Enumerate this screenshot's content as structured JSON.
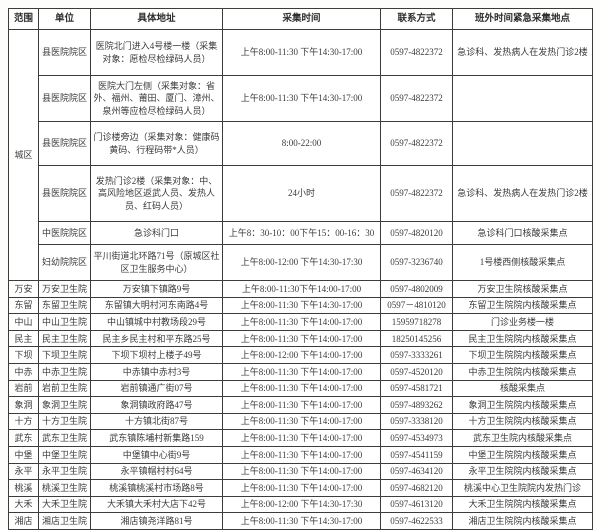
{
  "header": {
    "cols": [
      "范围",
      "单位",
      "具体地址",
      "采集时间",
      "联系方式",
      "班外时间紧急采集地点"
    ]
  },
  "city_section": {
    "scope": "城区",
    "rows": [
      {
        "unit": "县医院院区",
        "address": "医院北门进入4号楼一楼（采集对象：愿检尽检绿码人员）",
        "time": "上午8:00-11:30 下午14:30-17:00",
        "phone": "0597-4822372",
        "emergency": "急诊科、发热病人在发热门诊2楼"
      },
      {
        "unit": "县医院院区",
        "address": "医院大门左侧（采集对象：省外、福州、莆田、厦门、漳州、泉州等应检尽检绿码人员）",
        "time": "上午8:00-11:30 下午14:30-17:00",
        "phone": "0597-4822372",
        "emergency": ""
      },
      {
        "unit": "县医院院区",
        "address": "门诊楼旁边（采集对象：健康码黄码、行程码带*人员）",
        "time": "8:00-22:00",
        "phone": "0597-4822372",
        "emergency": ""
      },
      {
        "unit": "县医院院区",
        "address": "发热门诊2楼（采集对象：中、高风险地区返武人员、发热人员、红码人员）",
        "time": "24小时",
        "phone": "0597-4822372",
        "emergency": "急诊科、发热病人在发热门诊2楼"
      },
      {
        "unit": "中医院院区",
        "address": "急诊科门口",
        "time": "上午8：30-10：00下午15：00-16：30",
        "phone": "0597-4820120",
        "emergency": "急诊科门口核酸采集点"
      },
      {
        "unit": "妇幼院院区",
        "address": "平川街道北环路71号（原城区社区卫生服务中心）",
        "time": "上午8:00-12:00 下午14:30-17:30",
        "phone": "0597-3236740",
        "emergency": "1号楼西侧核酸采集点"
      }
    ]
  },
  "township_rows": [
    {
      "scope": "万安",
      "unit": "万安卫生院",
      "address": "万安镇下镇路9号",
      "time": "上午8:00-11:30下午14:00-17:00",
      "phone": "0597-4802009",
      "emergency": "万安卫生院核酸采集点"
    },
    {
      "scope": "东留",
      "unit": "东留卫生院",
      "address": "东留镇大明村河东南路4号",
      "time": "上午8:00-11:30 下午14:30-17:00",
      "phone": "0597－4810120",
      "emergency": "东留卫生院院内核酸采集点"
    },
    {
      "scope": "中山",
      "unit": "中山卫生院",
      "address": "中山镇城中村教场段29号",
      "time": "上午8:00-11:30 下午14:00-17:00",
      "phone": "15959718278",
      "emergency": "门诊业务楼一楼"
    },
    {
      "scope": "民主",
      "unit": "民主卫生院",
      "address": "民主乡民主村和平东路25号",
      "time": "上午8:00-11:30 下午14:00-17:00",
      "phone": "18250145256",
      "emergency": "民主卫生院院内核酸采集点"
    },
    {
      "scope": "下坝",
      "unit": "下坝卫生院",
      "address": "下坝下坝村上楼子49号",
      "time": "上午8:00-12:00 下午14:00-17:00",
      "phone": "0597-3333261",
      "emergency": "下坝卫生院院内核酸采集点"
    },
    {
      "scope": "中赤",
      "unit": "中赤卫生院",
      "address": "中赤镇中赤村3号",
      "time": "上午8:00-11:30 下午14:00-17:00",
      "phone": "0597-4520120",
      "emergency": "中赤卫生院院内核酸采集点"
    },
    {
      "scope": "岩前",
      "unit": "岩前卫生院",
      "address": "岩前镇通广街07号",
      "time": "上午8:00-11:30 下午14:00-17:00",
      "phone": "0597-4581721",
      "emergency": "核酸采集点"
    },
    {
      "scope": "象洞",
      "unit": "象洞卫生院",
      "address": "象洞镇政府路47号",
      "time": "上午8:00-11:30 下午14:00-17:00",
      "phone": "0597-4893262",
      "emergency": "象洞卫生院院内核酸采集点"
    },
    {
      "scope": "十方",
      "unit": "十方卫生院",
      "address": "十方镇北街87号",
      "time": "上午8:00-11:30 下午14:00-17:00",
      "phone": "0597-3338120",
      "emergency": "十方卫生院院内核酸采集点"
    },
    {
      "scope": "武东",
      "unit": "武东卫生院",
      "address": "武东镇陈埔村新集路159",
      "time": "上午8:00-11:30 下午14:00-17:00",
      "phone": "0597-4534973",
      "emergency": "武东卫生院内核酸采集点"
    },
    {
      "scope": "中堡",
      "unit": "中堡卫生院",
      "address": "中堡镇中心街9号",
      "time": "上午8:00-11:30 下午14:00-17:00",
      "phone": "0597-4541159",
      "emergency": "中堡卫生院院内核酸采集点"
    },
    {
      "scope": "永平",
      "unit": "永平卫生院",
      "address": "永平镇帽村村64号",
      "time": "上午8:00-11:30 下午14:00-17:00",
      "phone": "0597-4634120",
      "emergency": "永平卫生院院内核酸采集点"
    },
    {
      "scope": "桃溪",
      "unit": "桃溪卫生院",
      "address": "桃溪镇桃溪村市场路8号",
      "time": "上午8:00-11:30 下午14:00-17:00",
      "phone": "0597-4682120",
      "emergency": "桃溪中心卫生院院内发热门诊"
    },
    {
      "scope": "大禾",
      "unit": "大禾卫生院",
      "address": "大禾镇大禾村大店下42号",
      "time": "上午8:00-12:00 下午14:30-17:30",
      "phone": "0597-4613120",
      "emergency": "大禾卫生院院内核酸采集点"
    },
    {
      "scope": "湘店",
      "unit": "湘店卫生院",
      "address": "湘店镇尧洋路81号",
      "time": "上午8:00-11:30 下午14:30-17:00",
      "phone": "0597-4622533",
      "emergency": "湘店卫生院院内核酸采集点"
    }
  ]
}
